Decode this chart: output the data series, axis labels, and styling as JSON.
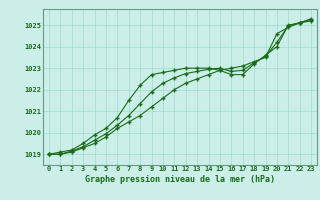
{
  "title": "Graphe pression niveau de la mer (hPa)",
  "background_color": "#cceee8",
  "grid_color": "#99ddcc",
  "line_color": "#1a6b1a",
  "text_color": "#1a6b1a",
  "border_color": "#669988",
  "xlim": [
    -0.5,
    23.5
  ],
  "ylim": [
    1018.5,
    1025.75
  ],
  "yticks": [
    1019,
    1020,
    1021,
    1022,
    1023,
    1024,
    1025
  ],
  "xticks": [
    0,
    1,
    2,
    3,
    4,
    5,
    6,
    7,
    8,
    9,
    10,
    11,
    12,
    13,
    14,
    15,
    16,
    17,
    18,
    19,
    20,
    21,
    22,
    23
  ],
  "series": [
    [
      1019.0,
      1019.1,
      1019.2,
      1019.5,
      1019.9,
      1020.2,
      1020.7,
      1021.5,
      1022.2,
      1022.7,
      1022.8,
      1022.9,
      1023.0,
      1023.0,
      1023.0,
      1022.9,
      1022.7,
      1022.7,
      1023.2,
      1023.6,
      1024.0,
      1025.0,
      1025.1,
      1025.3
    ],
    [
      1019.0,
      1019.0,
      1019.1,
      1019.3,
      1019.5,
      1019.8,
      1020.2,
      1020.5,
      1020.8,
      1021.2,
      1021.6,
      1022.0,
      1022.3,
      1022.5,
      1022.7,
      1022.9,
      1023.0,
      1023.1,
      1023.3,
      1023.5,
      1024.6,
      1024.9,
      1025.1,
      1025.2
    ],
    [
      1019.0,
      1019.0,
      1019.15,
      1019.35,
      1019.65,
      1019.95,
      1020.35,
      1020.8,
      1021.35,
      1021.9,
      1022.3,
      1022.55,
      1022.75,
      1022.85,
      1022.95,
      1023.0,
      1022.85,
      1022.9,
      1023.25,
      1023.55,
      1024.2,
      1024.97,
      1025.12,
      1025.26
    ]
  ],
  "xlabel_fontsize": 6.0,
  "tick_fontsize": 5.0,
  "figsize": [
    3.2,
    2.0
  ],
  "dpi": 100
}
